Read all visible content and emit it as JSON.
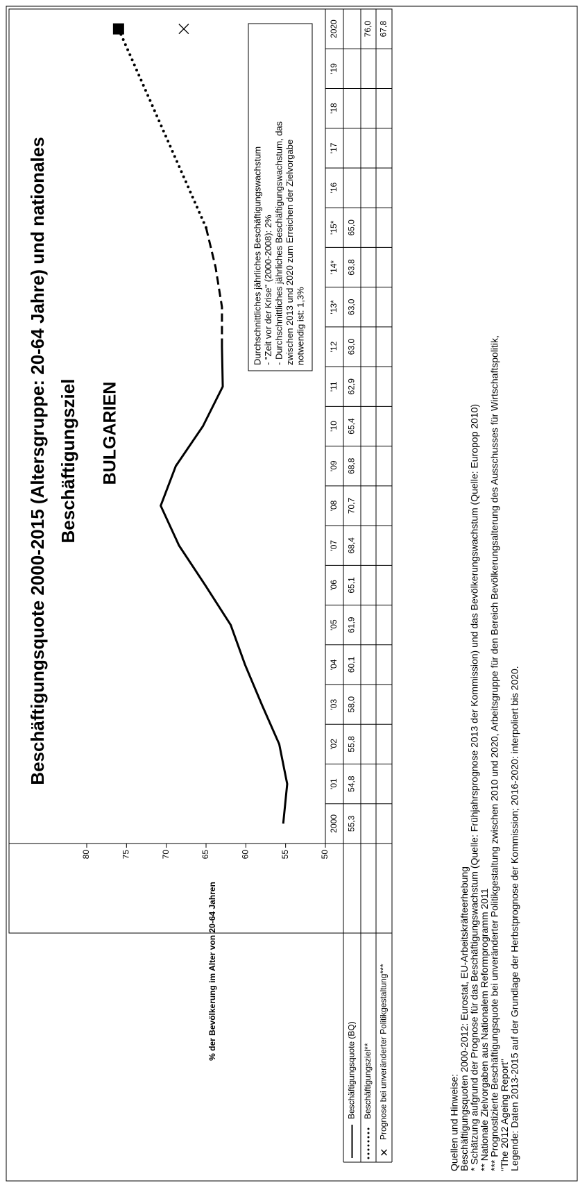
{
  "chart_data": {
    "type": "line",
    "title": [
      "Beschäftigungsquote 2000-2015 (Altersgruppe: 20-64 Jahre) und nationales",
      "Beschäftigungsziel"
    ],
    "subtitle": "BULGARIEN",
    "y_label": "% der Bevölkerung im Alter von 20-64 Jahren",
    "annotation": [
      "Durchschnittliches jährliches Beschäftigungswachstum",
      "- \"Zeit vor der Krise\" (2000-2008): 2%",
      "- Durchschnittliches jährliches Beschäftigungswachstum, das",
      "zwischen 2013 und 2020 zum Erreichen der Zielvorgabe",
      "notwendig ist: 1,3%"
    ],
    "categories": [
      "2000",
      "'01",
      "'02",
      "'03",
      "'04",
      "'05",
      "'06",
      "'07",
      "'08",
      "'09",
      "'10",
      "'11",
      "'12",
      "'13*",
      "'14*",
      "'15*",
      "'16",
      "'17",
      "'18",
      "'19",
      "2020"
    ],
    "series": [
      {
        "name": "Beschäftigungsquote (BQ)",
        "color": "#000000",
        "values": [
          55.3,
          54.8,
          55.8,
          58.0,
          60.1,
          61.9,
          65.1,
          68.4,
          70.7,
          68.8,
          65.4,
          62.9,
          63.0,
          63.0,
          63.8,
          65.0,
          null,
          null,
          null,
          null,
          null
        ],
        "value_labels": [
          "55,3",
          "54,8",
          "55,8",
          "58,0",
          "60,1",
          "61,9",
          "65,1",
          "68,4",
          "70,7",
          "68,8",
          "65,4",
          "62,9",
          "63,0",
          "63,0",
          "63,8",
          "65,0",
          null,
          null,
          null,
          null,
          null
        ]
      },
      {
        "name": "Beschäftigungsziel**",
        "color": "#000000",
        "values": [
          null,
          null,
          null,
          null,
          null,
          null,
          null,
          null,
          null,
          null,
          null,
          null,
          null,
          null,
          null,
          null,
          null,
          null,
          null,
          null,
          76.0
        ],
        "value_labels": [
          null,
          null,
          null,
          null,
          null,
          null,
          null,
          null,
          null,
          null,
          null,
          null,
          null,
          null,
          null,
          null,
          null,
          null,
          null,
          null,
          "76,0"
        ]
      },
      {
        "name": "Prognose bei unveränderter Politikgestaltung***",
        "color": "#000000",
        "values": [
          null,
          null,
          null,
          null,
          null,
          null,
          null,
          null,
          null,
          null,
          null,
          null,
          null,
          null,
          null,
          null,
          null,
          null,
          null,
          null,
          67.8
        ],
        "value_labels": [
          null,
          null,
          null,
          null,
          null,
          null,
          null,
          null,
          null,
          null,
          null,
          null,
          null,
          null,
          null,
          null,
          null,
          null,
          null,
          null,
          "67,8"
        ]
      }
    ],
    "ylim": [
      50,
      80
    ],
    "yticks": [
      50,
      55,
      60,
      65,
      70,
      75,
      80
    ],
    "footnotes": [
      "Quellen und Hinweise:",
      "Beschäftigungsquoten 2000-2012: Eurostat, EU-Arbeitskräfteerhebung",
      "* Schätzung aufgrund der Prognose für das Beschäftigungswachstum (Quelle: Frühjahrsprognose 2013 der Kommission) und das Bevölkerungswachstum (Quelle: Europop 2010)",
      "** Nationale Zielvorgaben aus Nationalem Reformprogramm 2011",
      "*** Prognostizierte Beschäftigungsquote bei unveränderter Politikgestaltung zwischen 2010 und 2020, Arbeitsgruppe für den Bereich Bevölkerungsalterung des Ausschusses für Wirtschaftspolitik,",
      "\"The 2012 Ageing Report\"",
      "Legende: Daten 2013-2015 auf der Grundlage der Herbstprognose der Kommission; 2016-2020: interpoliert bis 2020."
    ]
  }
}
